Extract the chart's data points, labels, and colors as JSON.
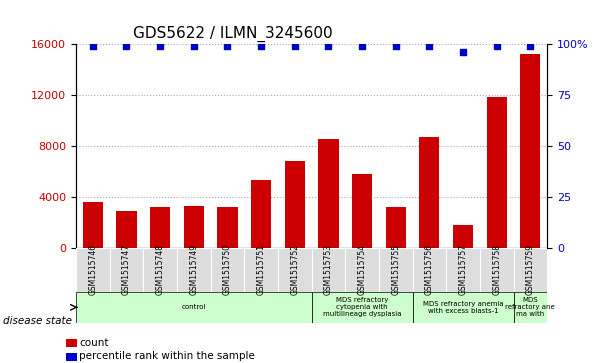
{
  "title": "GDS5622 / ILMN_3245600",
  "samples": [
    "GSM1515746",
    "GSM1515747",
    "GSM1515748",
    "GSM1515749",
    "GSM1515750",
    "GSM1515751",
    "GSM1515752",
    "GSM1515753",
    "GSM1515754",
    "GSM1515755",
    "GSM1515756",
    "GSM1515757",
    "GSM1515758",
    "GSM1515759"
  ],
  "counts": [
    3600,
    2900,
    3200,
    3300,
    3200,
    5300,
    6800,
    8500,
    5800,
    3200,
    8700,
    1800,
    11800,
    15200
  ],
  "percentile_ranks": [
    99,
    99,
    99,
    99,
    99,
    99,
    99,
    99,
    99,
    99,
    99,
    96,
    99,
    99
  ],
  "bar_color": "#cc0000",
  "dot_color": "#0000cc",
  "ylim_left": [
    0,
    16000
  ],
  "ylim_right": [
    0,
    100
  ],
  "yticks_left": [
    0,
    4000,
    8000,
    12000,
    16000
  ],
  "yticks_right": [
    0,
    25,
    50,
    75,
    100
  ],
  "disease_groups": [
    {
      "label": "control",
      "start": 0,
      "end": 6
    },
    {
      "label": "MDS refractory\ncytopenia with\nmultilineage dysplasia",
      "start": 7,
      "end": 9
    },
    {
      "label": "MDS refractory anemia\nwith excess blasts-1",
      "start": 10,
      "end": 12
    },
    {
      "label": "MDS\nrefractory ane\nma with",
      "start": 13,
      "end": 13
    }
  ],
  "disease_state_label": "disease state",
  "legend_count_label": "count",
  "legend_pct_label": "percentile rank within the sample",
  "background_color": "#ffffff",
  "tick_bg_color": "#dddddd",
  "disease_bg_color": "#ccffcc",
  "grid_color": "#aaaaaa"
}
